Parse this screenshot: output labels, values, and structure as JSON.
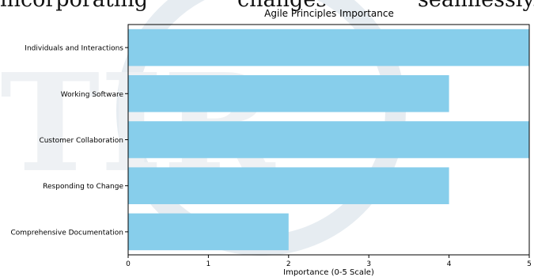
{
  "background_text": {
    "words": [
      "incorporating",
      "changes",
      "seamlessly."
    ]
  },
  "chart_data": {
    "type": "bar",
    "orientation": "horizontal",
    "title": "Agile Principles Importance",
    "xlabel": "Importance (0-5 Scale)",
    "ylabel": "",
    "categories": [
      "Individuals and Interactions",
      "Working Software",
      "Customer Collaboration",
      "Responding to Change",
      "Comprehensive Documentation"
    ],
    "values": [
      5,
      4,
      5,
      4,
      2
    ],
    "xlim": [
      0,
      5
    ],
    "xticks": [
      0,
      1,
      2,
      3,
      4,
      5
    ],
    "grid": false,
    "legend": "none",
    "bar_color": "#87CEEB",
    "edge_color": "#000000"
  }
}
